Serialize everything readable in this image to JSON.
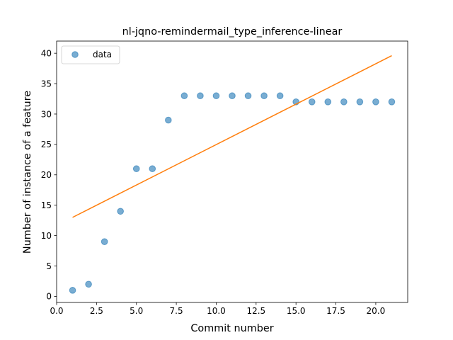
{
  "chart_data": {
    "type": "scatter",
    "title": "nl-jqno-remindermail_type_inference-linear",
    "xlabel": "Commit number",
    "ylabel": "Number of instance of a feature",
    "xlim": [
      0,
      22
    ],
    "ylim": [
      -1,
      42
    ],
    "xticks": [
      0,
      2.5,
      5,
      7.5,
      10,
      12.5,
      15,
      17.5,
      20
    ],
    "xtick_labels": [
      "0.0",
      "2.5",
      "5.0",
      "7.5",
      "10.0",
      "12.5",
      "15.0",
      "17.5",
      "20.0"
    ],
    "yticks": [
      0,
      5,
      10,
      15,
      20,
      25,
      30,
      35,
      40
    ],
    "ytick_labels": [
      "0",
      "5",
      "10",
      "15",
      "20",
      "25",
      "30",
      "35",
      "40"
    ],
    "grid": false,
    "legend": {
      "placement": "top-left",
      "entries": [
        "data"
      ]
    },
    "series": [
      {
        "name": "data",
        "kind": "scatter",
        "color": "#1f77b4",
        "x": [
          1,
          2,
          3,
          4,
          5,
          6,
          7,
          8,
          9,
          10,
          11,
          12,
          13,
          14,
          15,
          16,
          17,
          18,
          19,
          20,
          21
        ],
        "y": [
          1,
          2,
          9,
          14,
          21,
          21,
          29,
          33,
          33,
          33,
          33,
          33,
          33,
          33,
          32,
          32,
          32,
          32,
          32,
          32,
          32
        ]
      },
      {
        "kind": "line",
        "color": "#ff7f0e",
        "x": [
          1,
          21
        ],
        "y": [
          13.0,
          39.6
        ]
      }
    ]
  }
}
